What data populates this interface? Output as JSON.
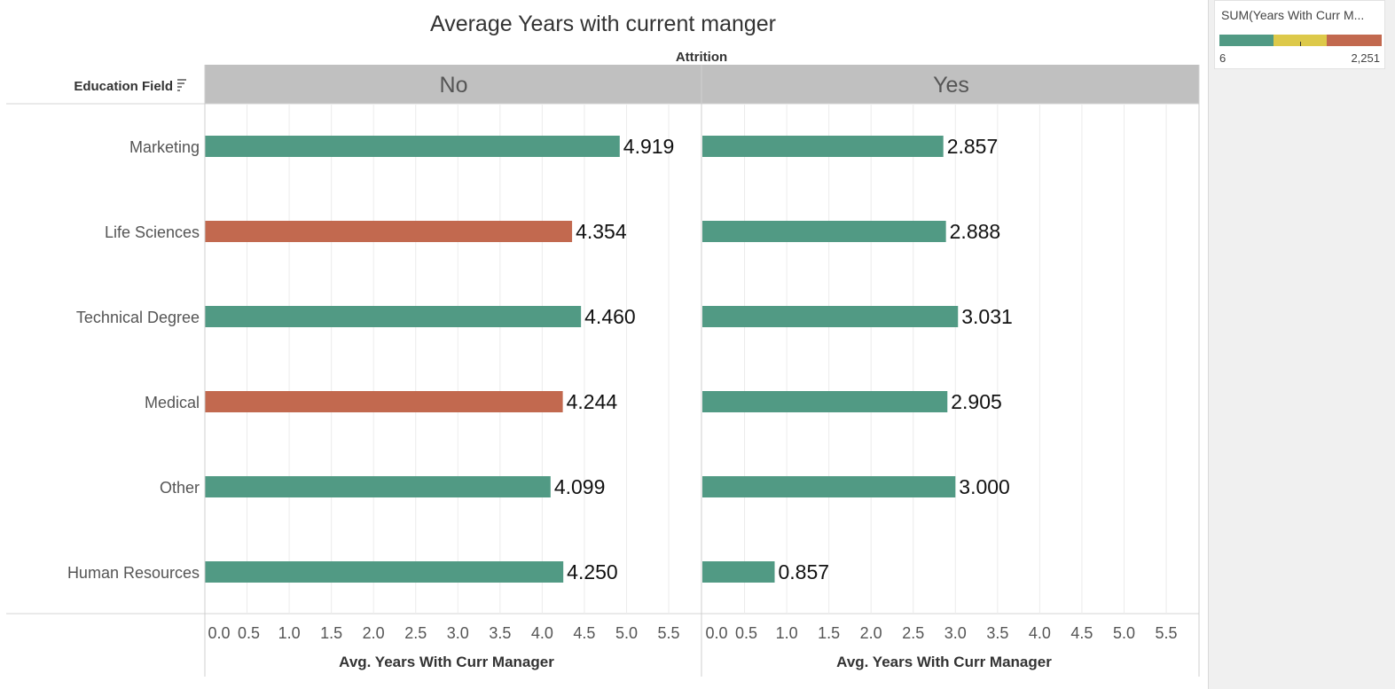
{
  "chart_data": {
    "type": "bar",
    "orientation": "horizontal",
    "title": "Average Years with current manger",
    "column_header_title": "Attrition",
    "row_header_title": "Education Field",
    "xlabel": "Avg. Years With Curr Manager",
    "xlim": [
      0,
      5.9
    ],
    "x_ticks": [
      "0.0",
      "0.5",
      "1.0",
      "1.5",
      "2.0",
      "2.5",
      "3.0",
      "3.5",
      "4.0",
      "4.5",
      "5.0",
      "5.5"
    ],
    "categories": [
      "Marketing",
      "Life Sciences",
      "Technical Degree",
      "Medical",
      "Other",
      "Human Resources"
    ],
    "grid": "vertical gridlines",
    "panels": [
      {
        "name": "No",
        "values": [
          4.919,
          4.354,
          4.46,
          4.244,
          4.099,
          4.25
        ],
        "labels": [
          "4.919",
          "4.354",
          "4.460",
          "4.244",
          "4.099",
          "4.250"
        ],
        "colors": [
          "#519a84",
          "#c2694f",
          "#519a84",
          "#c2694f",
          "#519a84",
          "#519a84"
        ]
      },
      {
        "name": "Yes",
        "values": [
          2.857,
          2.888,
          3.031,
          2.905,
          3.0,
          0.857
        ],
        "labels": [
          "2.857",
          "2.888",
          "3.031",
          "2.905",
          "3.000",
          "0.857"
        ],
        "colors": [
          "#519a84",
          "#519a84",
          "#519a84",
          "#519a84",
          "#519a84",
          "#519a84"
        ]
      }
    ],
    "legend": {
      "title": "SUM(Years With Curr M...",
      "min_label": "6",
      "max_label": "2,251",
      "colors": [
        "#519a84",
        "#ddc94a",
        "#c2694f"
      ],
      "placement": "top-right"
    }
  }
}
